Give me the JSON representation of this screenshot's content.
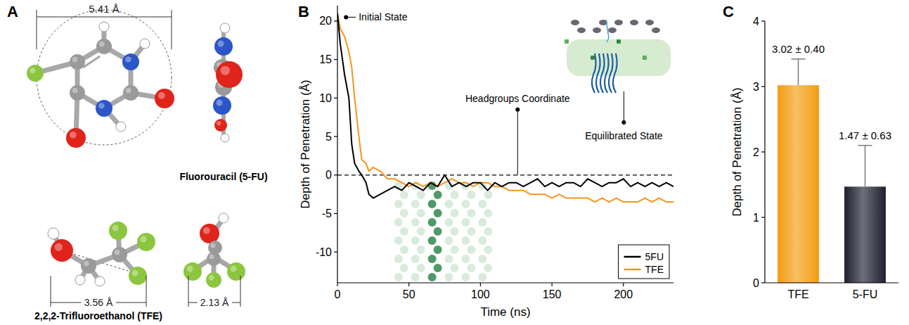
{
  "diagram": {
    "panel_label": "A",
    "molecules": [
      {
        "name": "Fluorouracil (5-FU)",
        "dimensions": [
          "5.41 Å"
        ]
      },
      {
        "name": "2,2,2-Trifluoroethanol (TFE)",
        "dimensions": [
          "3.56 Å",
          "2.13 Å"
        ]
      }
    ]
  },
  "chart_data": [
    {
      "panel_label": "B",
      "type": "line",
      "xlabel": "Time (ns)",
      "ylabel": "Depth of Penetration (Å)",
      "x": [
        0,
        2,
        5,
        8,
        10,
        12,
        15,
        17,
        20,
        22,
        25,
        30,
        35,
        40,
        45,
        50,
        55,
        60,
        65,
        70,
        75,
        80,
        85,
        90,
        95,
        100,
        105,
        110,
        115,
        120,
        125,
        130,
        135,
        140,
        145,
        150,
        155,
        160,
        165,
        170,
        175,
        180,
        185,
        190,
        195,
        200,
        205,
        210,
        215,
        220,
        225,
        230,
        235
      ],
      "series": [
        {
          "name": "5FU",
          "color": "#000000",
          "values": [
            21,
            17,
            13,
            10,
            4,
            1.5,
            0.5,
            0,
            -1,
            -2.5,
            -3,
            -2.5,
            -2,
            -1.5,
            -2,
            -1,
            -1.5,
            -2,
            -1,
            -1.5,
            0,
            -1.5,
            -1,
            -1.5,
            -1,
            -1,
            -2,
            -1,
            -1.5,
            -1,
            -1,
            -1.5,
            -1,
            -0.5,
            -1.5,
            -1,
            -1.5,
            -1,
            -1,
            -1.5,
            -0.5,
            -1,
            -1.5,
            -1,
            -1,
            -0.5,
            -1.5,
            -1,
            -1.5,
            -1,
            -1.5,
            -1,
            -1.5
          ]
        },
        {
          "name": "TFE",
          "color": "#f7941d",
          "values": [
            21,
            19,
            18,
            16,
            14,
            10,
            5,
            2,
            1.5,
            0.5,
            1,
            0.5,
            -0.5,
            -0.5,
            -1,
            -1.5,
            -1,
            -1.5,
            -1,
            -1.5,
            -1,
            -0.5,
            -1,
            -1,
            -1.5,
            -1,
            -1,
            -1.5,
            -1.5,
            -2,
            -2,
            -2,
            -2.5,
            -2.5,
            -2.5,
            -3,
            -2.5,
            -3,
            -3,
            -3,
            -3,
            -3.5,
            -3,
            -3.5,
            -3,
            -3.5,
            -3.5,
            -3.5,
            -3,
            -3.5,
            -3,
            -3.5,
            -3.5
          ]
        }
      ],
      "xlim": [
        0,
        235
      ],
      "ylim": [
        -14,
        22
      ],
      "xticks": [
        0,
        50,
        100,
        150,
        200
      ],
      "yticks": [
        -10,
        -5,
        0,
        5,
        10,
        15,
        20
      ],
      "legend": "bottom-right",
      "reference_lines": [
        {
          "value": 0,
          "line_style": "dashed"
        }
      ],
      "annotations": [
        {
          "text": "Initial State",
          "x": 6,
          "y": 20.5
        },
        {
          "text": "Headgroups Coordinate",
          "x": 126,
          "y": 0
        },
        {
          "text": "Equilibrated State"
        }
      ]
    },
    {
      "panel_label": "C",
      "type": "bar",
      "ylabel": "Depth of Penetration (Å)",
      "categories": [
        "TFE",
        "5-FU"
      ],
      "values": [
        3.02,
        1.47
      ],
      "errors": [
        0.4,
        0.63
      ],
      "value_labels": [
        "3.02 ± 0.40",
        "1.47 ± 0.63"
      ],
      "data_labels": true,
      "colors": [
        "#f39c12",
        "#1e2030"
      ],
      "ylim": [
        0,
        4
      ],
      "yticks": [
        0,
        1,
        2,
        3,
        4
      ]
    }
  ]
}
